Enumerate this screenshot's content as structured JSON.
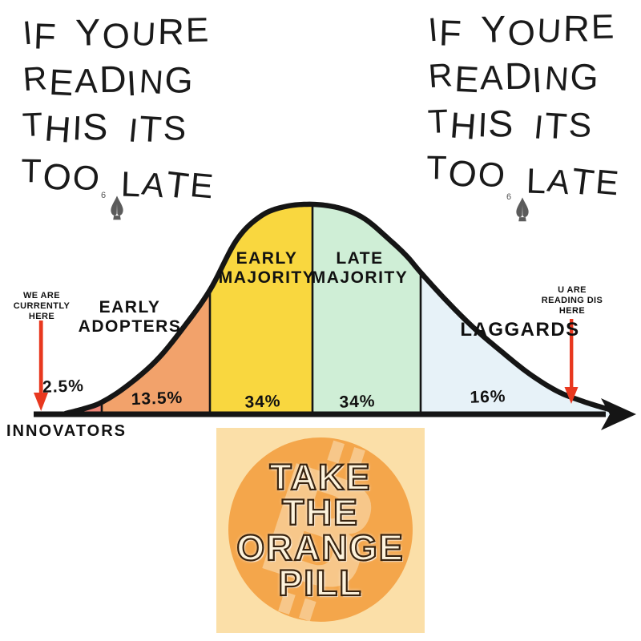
{
  "album": {
    "lines": [
      "IF YOURE",
      "READING",
      "THIS ITS",
      "TOO LATE"
    ],
    "badge": "6"
  },
  "chart": {
    "segments": [
      {
        "name": "INNOVATORS",
        "pct": "2.5%",
        "color": "#f08577",
        "name_lines": [
          "INNOVATORS"
        ]
      },
      {
        "name": "EARLY ADOPTERS",
        "pct": "13.5%",
        "color": "#f2a26b",
        "name_lines": [
          "EARLY",
          "ADOPTERS"
        ]
      },
      {
        "name": "EARLY MAJORITY",
        "pct": "34%",
        "color": "#f9d73f",
        "name_lines": [
          "EARLY",
          "MAJORITY"
        ]
      },
      {
        "name": "LATE MAJORITY",
        "pct": "34%",
        "color": "#cfeed6",
        "name_lines": [
          "LATE",
          "MAJORITY"
        ]
      },
      {
        "name": "LAGGARDS",
        "pct": "16%",
        "color": "#e7f2f8",
        "name_lines": [
          "LAGGARDS"
        ]
      }
    ],
    "left_annotation": {
      "lines": [
        "WE ARE",
        "CURRENTLY",
        "HERE"
      ]
    },
    "right_annotation": {
      "lines": [
        "U ARE",
        "READING DIS",
        "HERE"
      ]
    },
    "arrow_color": "#e8381f",
    "line_color": "#151515"
  },
  "sticker": {
    "lines": [
      "TAKE",
      "THE",
      "ORANGE",
      "PILL"
    ],
    "bg_color": "#fbdfa8",
    "circle_color": "#f4a64b",
    "watermark_color": "#f8d3a0",
    "watermark_symbol": "B",
    "outline_color": "#38230f"
  },
  "chart_data": {
    "type": "area",
    "curve": "bell",
    "categories": [
      "INNOVATORS",
      "EARLY ADOPTERS",
      "EARLY MAJORITY",
      "LATE MAJORITY",
      "LAGGARDS"
    ],
    "values": [
      2.5,
      13.5,
      34,
      34,
      16
    ],
    "unit": "%",
    "legend_position": "none",
    "grid": false,
    "annotations": [
      {
        "text": "WE ARE CURRENTLY HERE",
        "points_to": "left start of curve"
      },
      {
        "text": "U ARE READING DIS HERE",
        "points_to": "right tail of curve"
      }
    ]
  }
}
